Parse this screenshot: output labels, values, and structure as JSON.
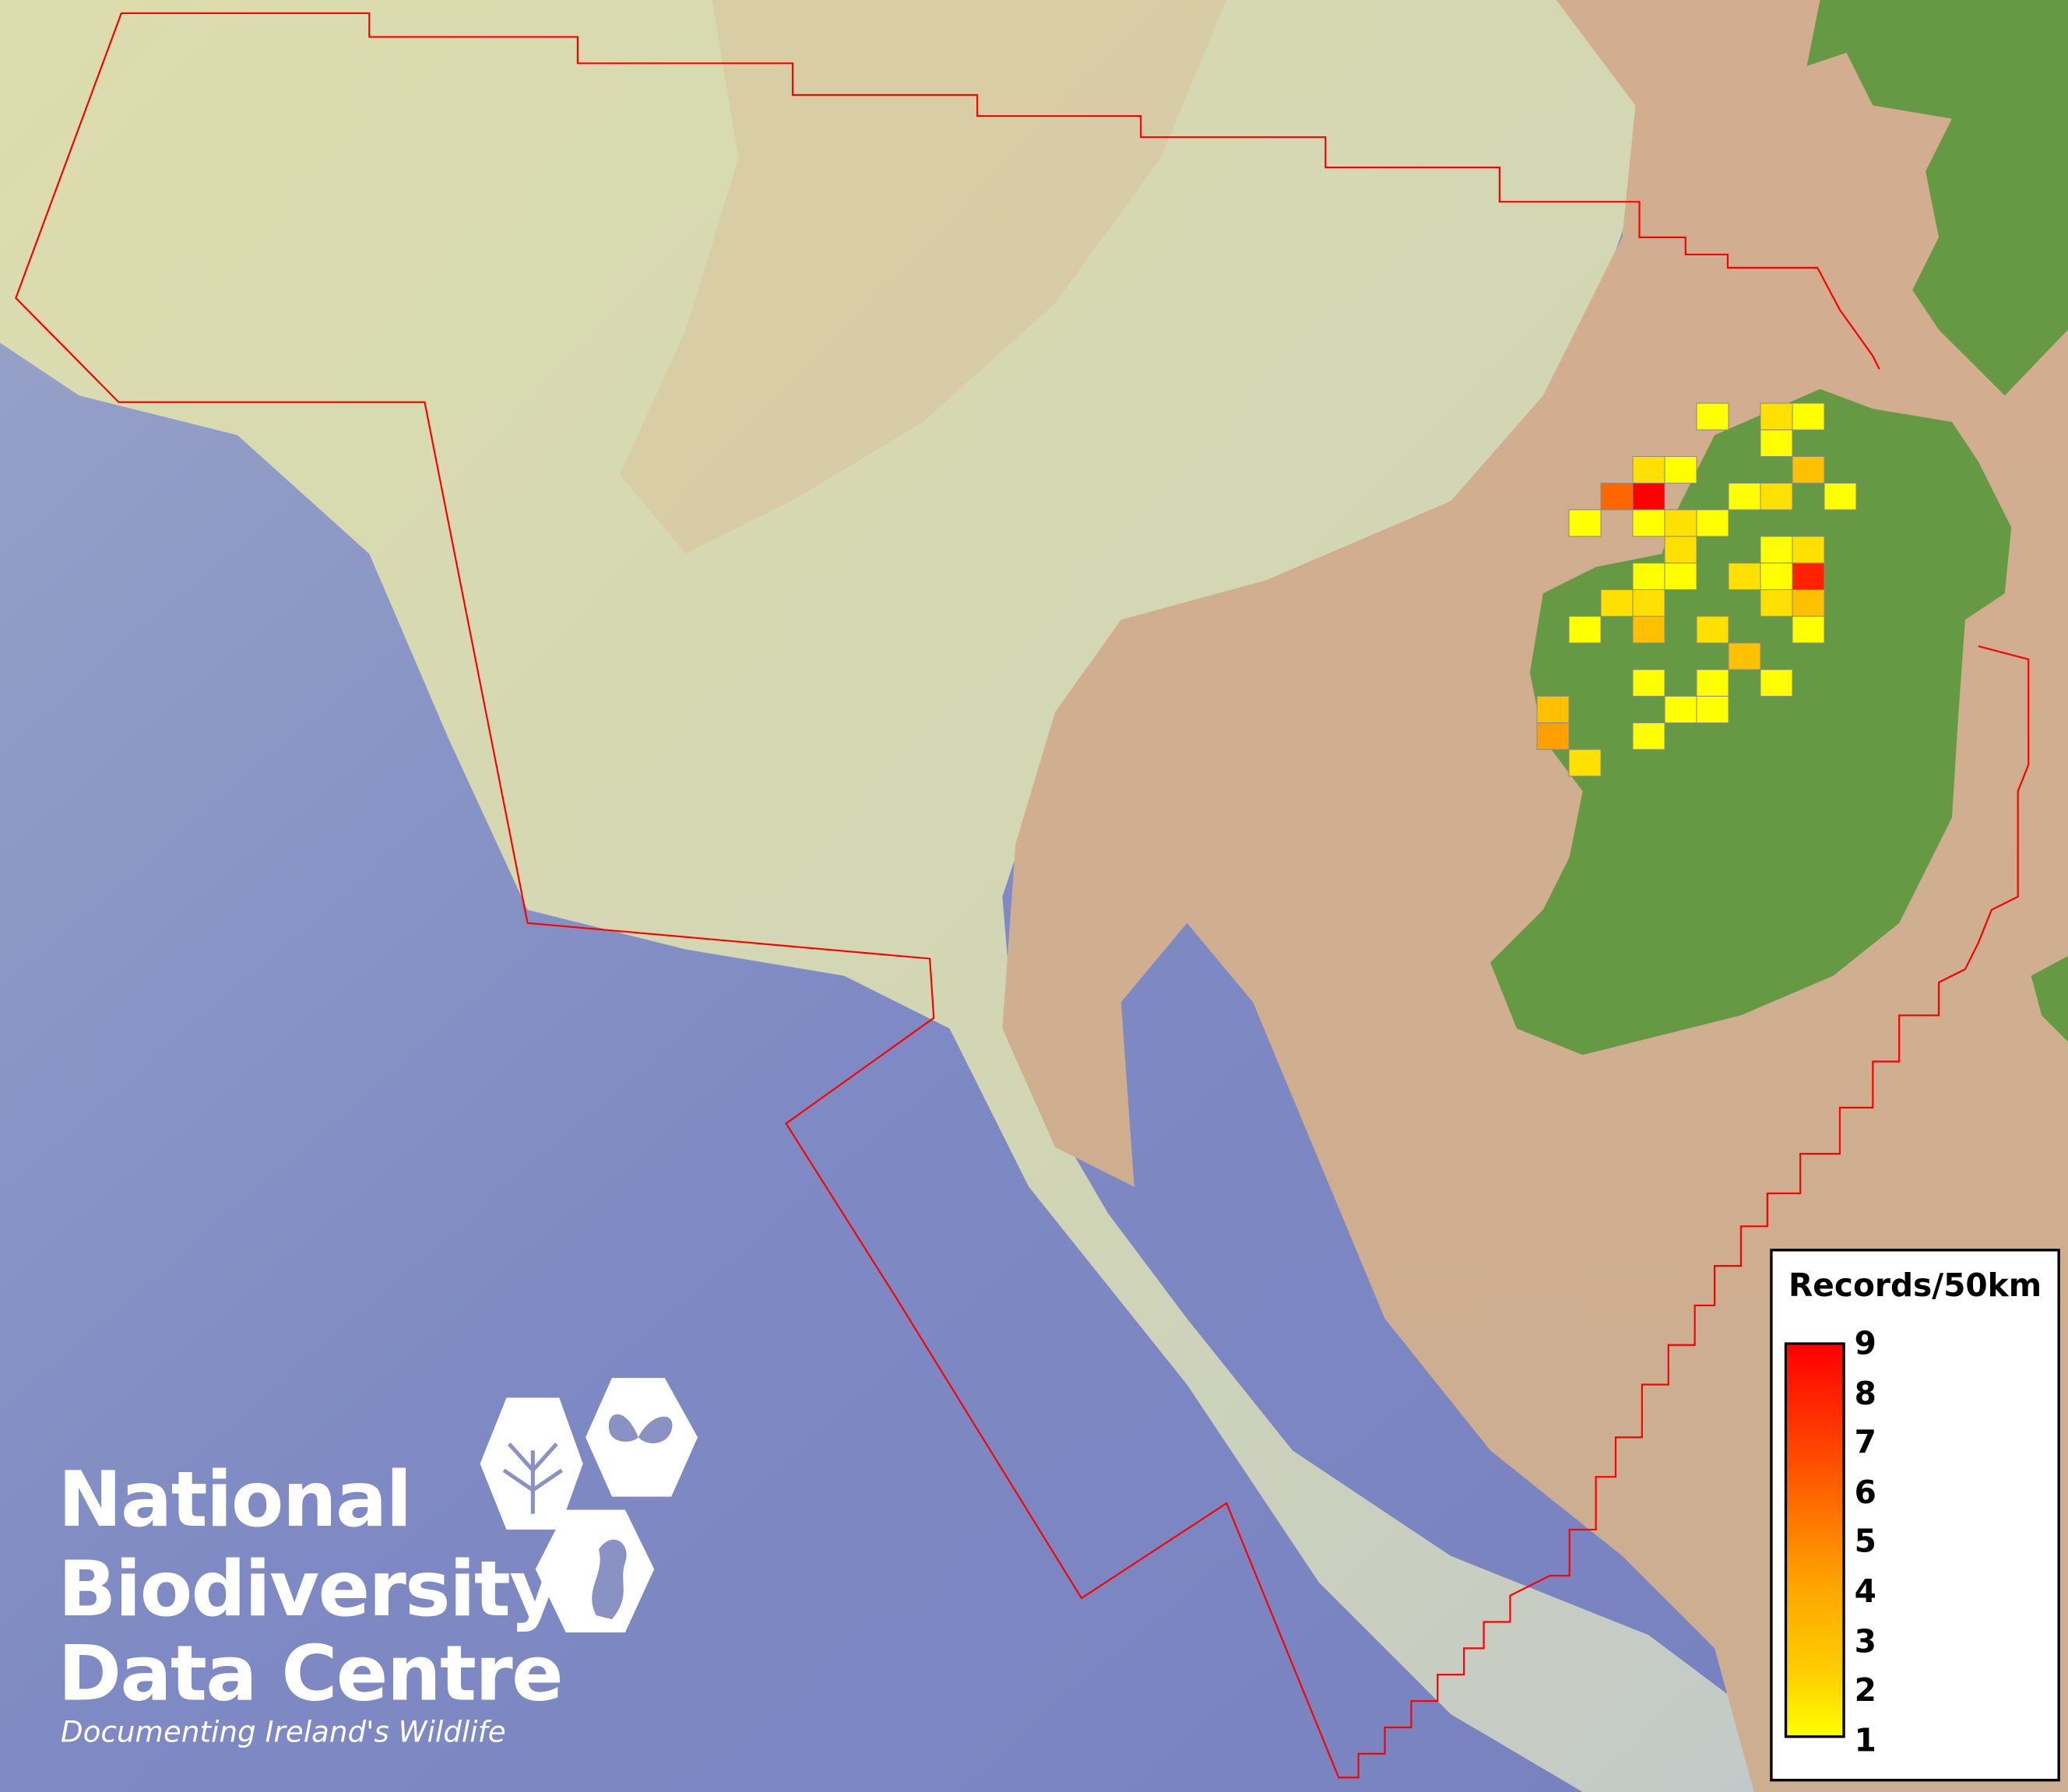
{
  "legend": {
    "title": "Records/50km",
    "ticks": [
      "9",
      "8",
      "7",
      "6",
      "5",
      "4",
      "3",
      "2",
      "1"
    ],
    "min": 1,
    "max": 9,
    "color_low": "#ffff00",
    "color_high": "#ff0000"
  },
  "logo": {
    "line1": "National",
    "line2": "Biodiversity",
    "line3": "Data Centre",
    "tagline": "Documenting Ireland's Wildlife"
  },
  "colors": {
    "boundary": "#ff0000",
    "land": "#669944",
    "ocean": "#7d88c2",
    "shelf": "#d9d8aa",
    "mask": "#cdae8e"
  },
  "chart_data": {
    "type": "heatmap",
    "title": "",
    "legend_title": "Records/50km",
    "value_range": [
      1,
      9
    ],
    "cells": [
      {
        "row": 0,
        "col": 5,
        "value": 1
      },
      {
        "row": 0,
        "col": 7,
        "value": 2
      },
      {
        "row": 0,
        "col": 8,
        "value": 1
      },
      {
        "row": 1,
        "col": 7,
        "value": 1
      },
      {
        "row": 2,
        "col": 3,
        "value": 2
      },
      {
        "row": 2,
        "col": 4,
        "value": 1
      },
      {
        "row": 2,
        "col": 8,
        "value": 3
      },
      {
        "row": 3,
        "col": 2,
        "value": 6
      },
      {
        "row": 3,
        "col": 3,
        "value": 9
      },
      {
        "row": 3,
        "col": 6,
        "value": 1
      },
      {
        "row": 3,
        "col": 7,
        "value": 2
      },
      {
        "row": 3,
        "col": 9,
        "value": 1
      },
      {
        "row": 4,
        "col": 1,
        "value": 1
      },
      {
        "row": 4,
        "col": 3,
        "value": 1
      },
      {
        "row": 4,
        "col": 4,
        "value": 2
      },
      {
        "row": 4,
        "col": 5,
        "value": 1
      },
      {
        "row": 5,
        "col": 4,
        "value": 2
      },
      {
        "row": 5,
        "col": 7,
        "value": 1
      },
      {
        "row": 5,
        "col": 8,
        "value": 2
      },
      {
        "row": 6,
        "col": 3,
        "value": 1
      },
      {
        "row": 6,
        "col": 4,
        "value": 1
      },
      {
        "row": 6,
        "col": 6,
        "value": 2
      },
      {
        "row": 6,
        "col": 7,
        "value": 1
      },
      {
        "row": 6,
        "col": 8,
        "value": 8
      },
      {
        "row": 7,
        "col": 2,
        "value": 2
      },
      {
        "row": 7,
        "col": 3,
        "value": 2
      },
      {
        "row": 7,
        "col": 7,
        "value": 2
      },
      {
        "row": 7,
        "col": 8,
        "value": 3
      },
      {
        "row": 8,
        "col": 1,
        "value": 1
      },
      {
        "row": 8,
        "col": 3,
        "value": 3
      },
      {
        "row": 8,
        "col": 5,
        "value": 2
      },
      {
        "row": 8,
        "col": 8,
        "value": 1
      },
      {
        "row": 9,
        "col": 6,
        "value": 3
      },
      {
        "row": 10,
        "col": 3,
        "value": 1
      },
      {
        "row": 10,
        "col": 5,
        "value": 1
      },
      {
        "row": 10,
        "col": 7,
        "value": 1
      },
      {
        "row": 11,
        "col": 0,
        "value": 3
      },
      {
        "row": 11,
        "col": 4,
        "value": 1
      },
      {
        "row": 11,
        "col": 5,
        "value": 1
      },
      {
        "row": 12,
        "col": 0,
        "value": 4
      },
      {
        "row": 12,
        "col": 3,
        "value": 1
      },
      {
        "row": 13,
        "col": 1,
        "value": 2
      }
    ]
  }
}
